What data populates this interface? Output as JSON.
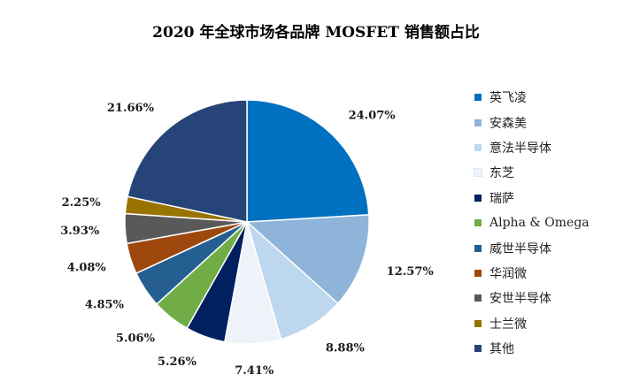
{
  "chart_data": {
    "type": "pie",
    "title": "2020 年全球市场各品牌 MOSFET 销售额占比",
    "legend_position": "right",
    "slices": [
      {
        "label": "英飞凌",
        "value": 24.07,
        "value_label": "24.07%",
        "color": "#0070C0"
      },
      {
        "label": "安森美",
        "value": 12.57,
        "value_label": "12.57%",
        "color": "#8EB4D9"
      },
      {
        "label": "意法半导体",
        "value": 8.88,
        "value_label": "8.88%",
        "color": "#BDD7EE"
      },
      {
        "label": "东芝",
        "value": 7.41,
        "value_label": "7.41%",
        "color": "#EEF3FA"
      },
      {
        "label": "瑞萨",
        "value": 5.26,
        "value_label": "5.26%",
        "color": "#002060"
      },
      {
        "label": "Alpha & Omega",
        "value": 5.06,
        "value_label": "5.06%",
        "color": "#70AD47"
      },
      {
        "label": "威世半导体",
        "value": 4.85,
        "value_label": "4.85%",
        "color": "#255E91"
      },
      {
        "label": "华润微",
        "value": 4.08,
        "value_label": "4.08%",
        "color": "#9E480E"
      },
      {
        "label": "安世半导体",
        "value": 3.93,
        "value_label": "3.93%",
        "color": "#595959"
      },
      {
        "label": "士兰微",
        "value": 2.25,
        "value_label": "2.25%",
        "color": "#997300"
      },
      {
        "label": "其他",
        "value": 21.66,
        "value_label": "21.66%",
        "color": "#264478"
      }
    ]
  }
}
